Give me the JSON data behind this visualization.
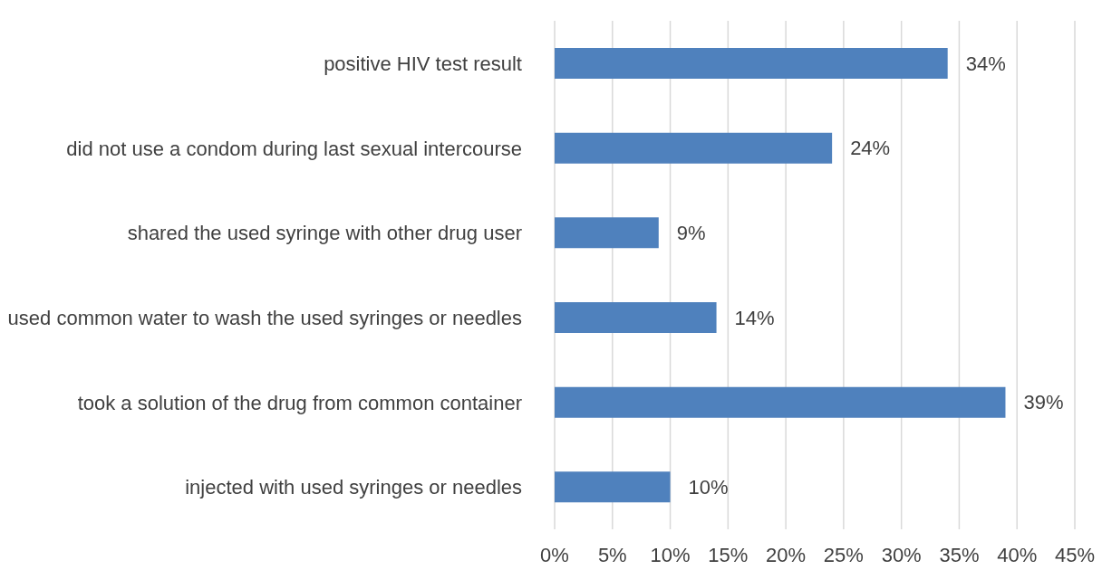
{
  "chart_data": {
    "type": "bar",
    "orientation": "horizontal",
    "categories": [
      "positive HIV test result",
      "did not use a condom during last sexual intercourse",
      "shared the used syringe with other drug user",
      "used common water to wash the used syringes or needles",
      "took a solution of the drug from common container",
      "injected with used syringes or needles"
    ],
    "values": [
      34,
      24,
      9,
      14,
      39,
      10
    ],
    "value_labels": [
      "34%",
      "24%",
      "9%",
      "14%",
      "39%",
      "10%"
    ],
    "color": "#4f81bd",
    "xlim": [
      0,
      45
    ],
    "xticks": [
      {
        "value": 0,
        "label": "0%"
      },
      {
        "value": 5,
        "label": "5%"
      },
      {
        "value": 10,
        "label": "10%"
      },
      {
        "value": 15,
        "label": "15%"
      },
      {
        "value": 20,
        "label": "20%"
      },
      {
        "value": 25,
        "label": "25%"
      },
      {
        "value": 30,
        "label": "30%"
      },
      {
        "value": 35,
        "label": "35%"
      },
      {
        "value": 40,
        "label": "40%"
      },
      {
        "value": 45,
        "label": "45%"
      }
    ],
    "grid": "x",
    "legend": false
  }
}
